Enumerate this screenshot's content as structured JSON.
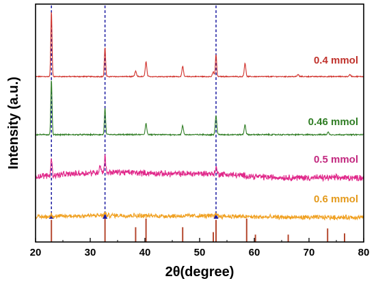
{
  "chart_data": {
    "type": "line",
    "title": "",
    "xlabel": "2θ(degree)",
    "ylabel": "Intensity (a.u.)",
    "xlim": [
      20,
      80
    ],
    "x_ticks": [
      20,
      30,
      40,
      50,
      60,
      70,
      80
    ],
    "y_ticks_labeled": false,
    "grid": false,
    "legend": "series labels placed at right side, next to each curve",
    "reference_lines": [
      22.9,
      32.7,
      53.0
    ],
    "reference_line_color": "#1a1aa0",
    "reference_bars": {
      "color": "#b5482f",
      "positions": [
        22.9,
        32.7,
        38.3,
        40.2,
        46.9,
        52.5,
        53.0,
        58.6,
        60.2,
        66.2,
        73.4,
        76.5
      ],
      "relative_heights": [
        0.9,
        0.95,
        0.6,
        0.95,
        0.6,
        0.4,
        0.9,
        0.95,
        0.3,
        0.3,
        0.55,
        0.35
      ]
    },
    "series": [
      {
        "name": "0.4 mmol",
        "color": "#d0302a",
        "label_color": "#c0322c",
        "noise": 0.006,
        "hump": 0,
        "peaks": [
          {
            "x": 22.9,
            "h": 0.98
          },
          {
            "x": 32.7,
            "h": 0.44
          },
          {
            "x": 38.3,
            "h": 0.08
          },
          {
            "x": 40.2,
            "h": 0.22
          },
          {
            "x": 46.9,
            "h": 0.15
          },
          {
            "x": 52.5,
            "h": 0.07
          },
          {
            "x": 53.0,
            "h": 0.33
          },
          {
            "x": 58.3,
            "h": 0.2
          },
          {
            "x": 68.0,
            "h": 0.03
          },
          {
            "x": 77.5,
            "h": 0.03
          }
        ]
      },
      {
        "name": "0.46 mmol",
        "color": "#2f7d24",
        "label_color": "#2f7d24",
        "noise": 0.008,
        "hump": 0,
        "peaks": [
          {
            "x": 22.9,
            "h": 0.88
          },
          {
            "x": 32.7,
            "h": 0.42
          },
          {
            "x": 40.2,
            "h": 0.18
          },
          {
            "x": 46.9,
            "h": 0.14
          },
          {
            "x": 53.0,
            "h": 0.3
          },
          {
            "x": 58.3,
            "h": 0.16
          },
          {
            "x": 73.5,
            "h": 0.04
          }
        ]
      },
      {
        "name": "0.5 mmol",
        "color": "#e0288a",
        "label_color": "#c2287f",
        "noise": 0.05,
        "hump": 0.14,
        "peaks": [
          {
            "x": 22.9,
            "h": 0.36
          },
          {
            "x": 31.8,
            "h": 0.15
          },
          {
            "x": 32.7,
            "h": 0.36
          },
          {
            "x": 53.0,
            "h": 0.12
          }
        ]
      },
      {
        "name": "0.6 mmol",
        "color": "#f0a020",
        "label_color": "#e49a1c",
        "noise": 0.045,
        "hump": 0.06,
        "peaks": [
          {
            "x": 22.9,
            "h": 0.06
          },
          {
            "x": 32.7,
            "h": 0.05
          },
          {
            "x": 53.0,
            "h": 0.08
          }
        ]
      }
    ]
  }
}
